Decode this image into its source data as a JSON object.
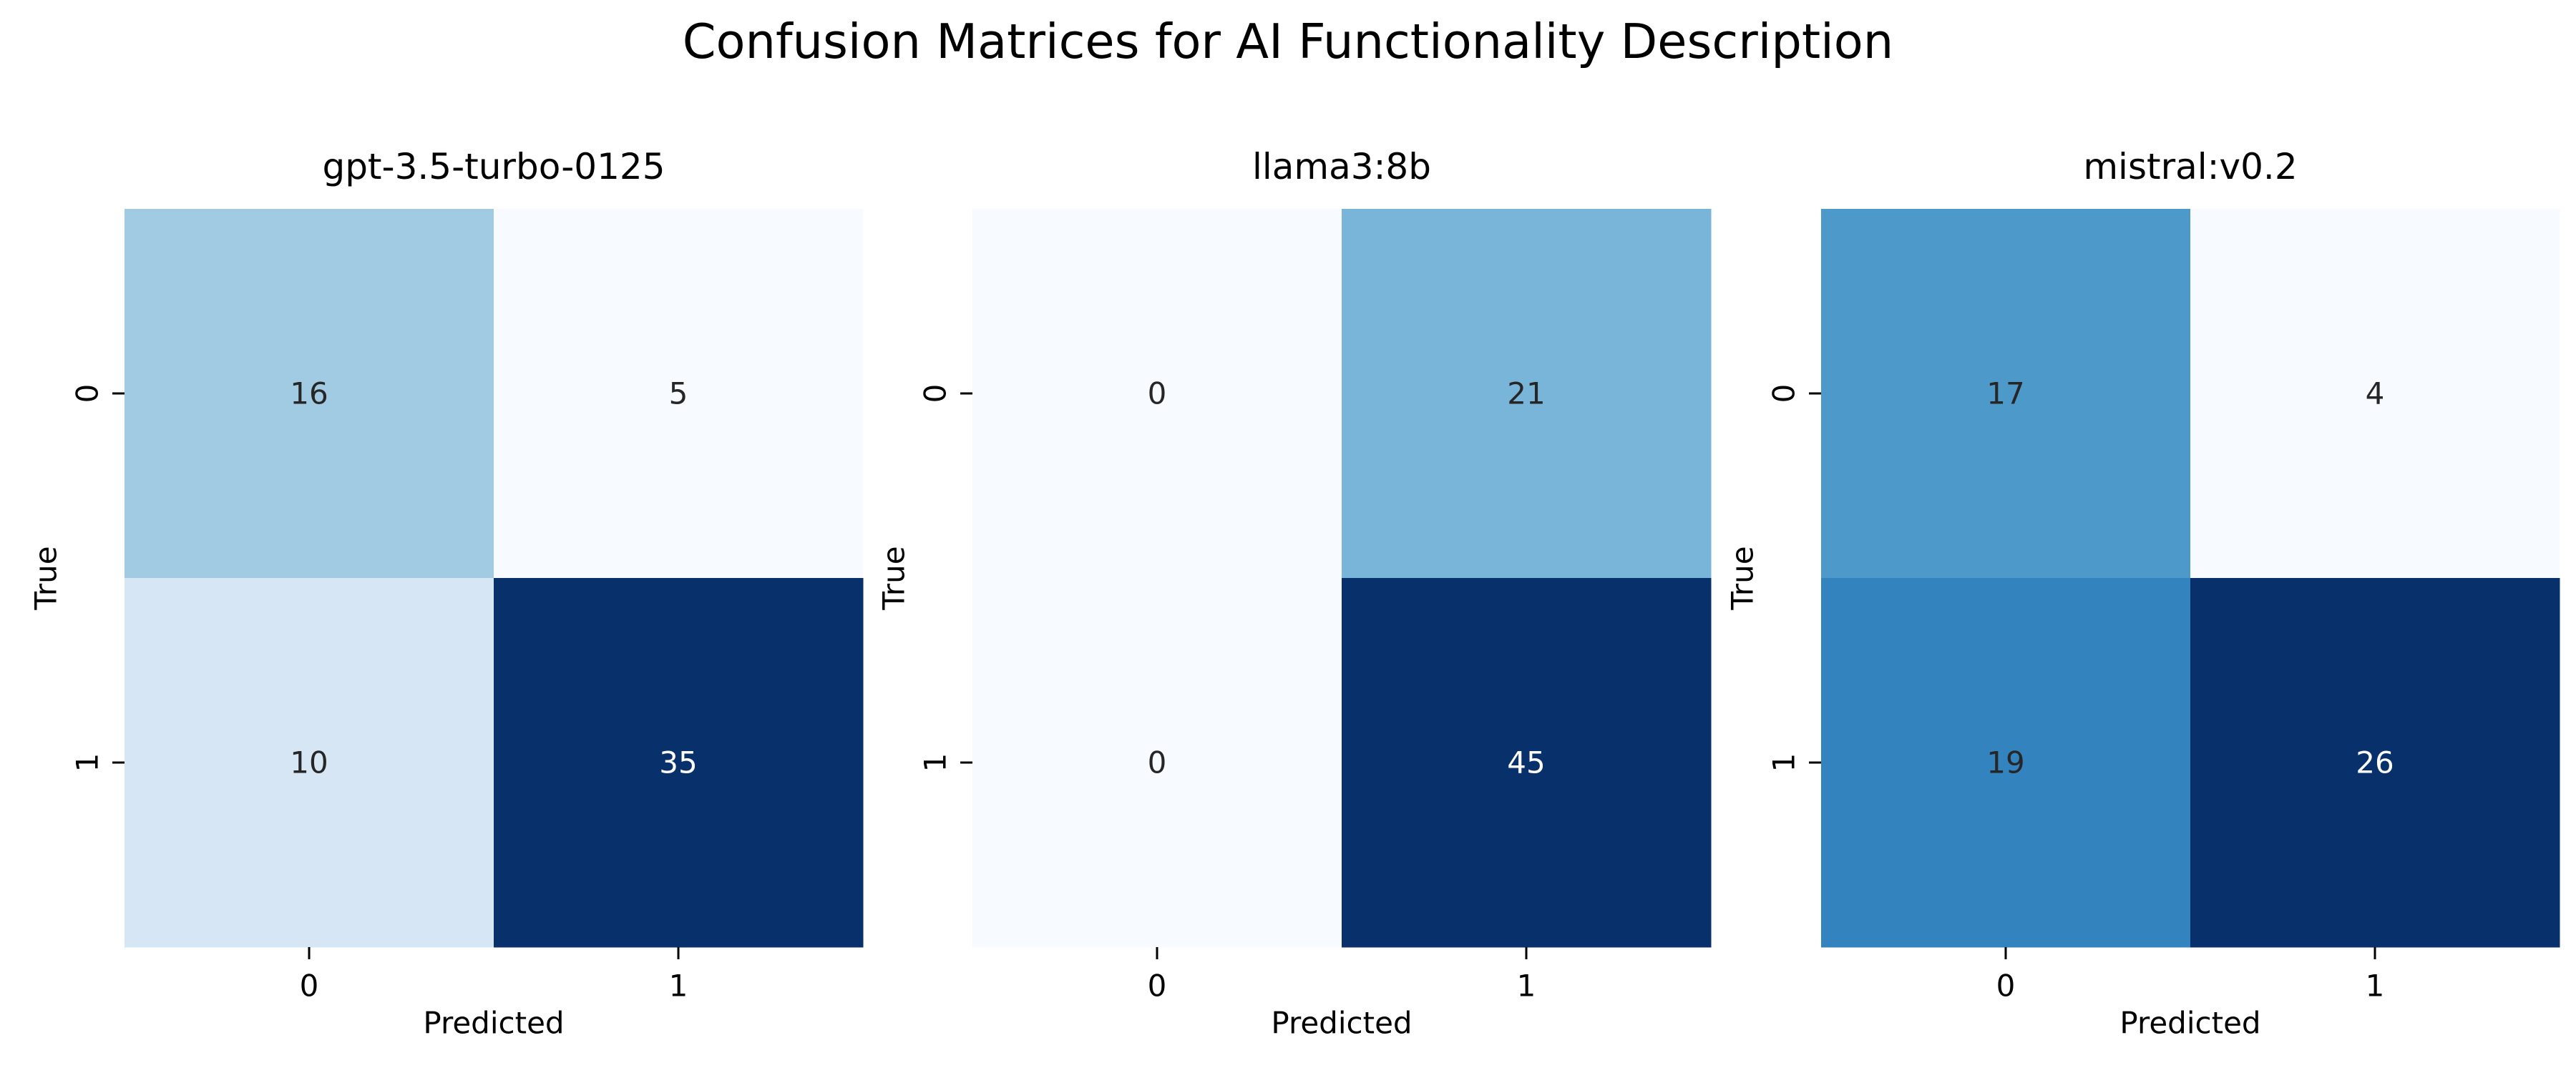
{
  "figure": {
    "title": "Confusion Matrices for AI Functionality Description"
  },
  "colors": {
    "cmap": "Blues",
    "light_text": "#ffffff",
    "dark_text": "#262626"
  },
  "chart_data": [
    {
      "type": "heatmap",
      "title": "gpt-3.5-turbo-0125",
      "xlabel": "Predicted",
      "ylabel": "True",
      "x_ticks": [
        "0",
        "1"
      ],
      "y_ticks": [
        "0",
        "1"
      ],
      "values": [
        [
          16,
          5
        ],
        [
          10,
          35
        ]
      ],
      "colorbar": false
    },
    {
      "type": "heatmap",
      "title": "llama3:8b",
      "xlabel": "Predicted",
      "ylabel": "True",
      "x_ticks": [
        "0",
        "1"
      ],
      "y_ticks": [
        "0",
        "1"
      ],
      "values": [
        [
          0,
          21
        ],
        [
          0,
          45
        ]
      ],
      "colorbar": false
    },
    {
      "type": "heatmap",
      "title": "mistral:v0.2",
      "xlabel": "Predicted",
      "ylabel": "True",
      "x_ticks": [
        "0",
        "1"
      ],
      "y_ticks": [
        "0",
        "1"
      ],
      "values": [
        [
          17,
          4
        ],
        [
          19,
          26
        ]
      ],
      "colorbar": false
    }
  ]
}
